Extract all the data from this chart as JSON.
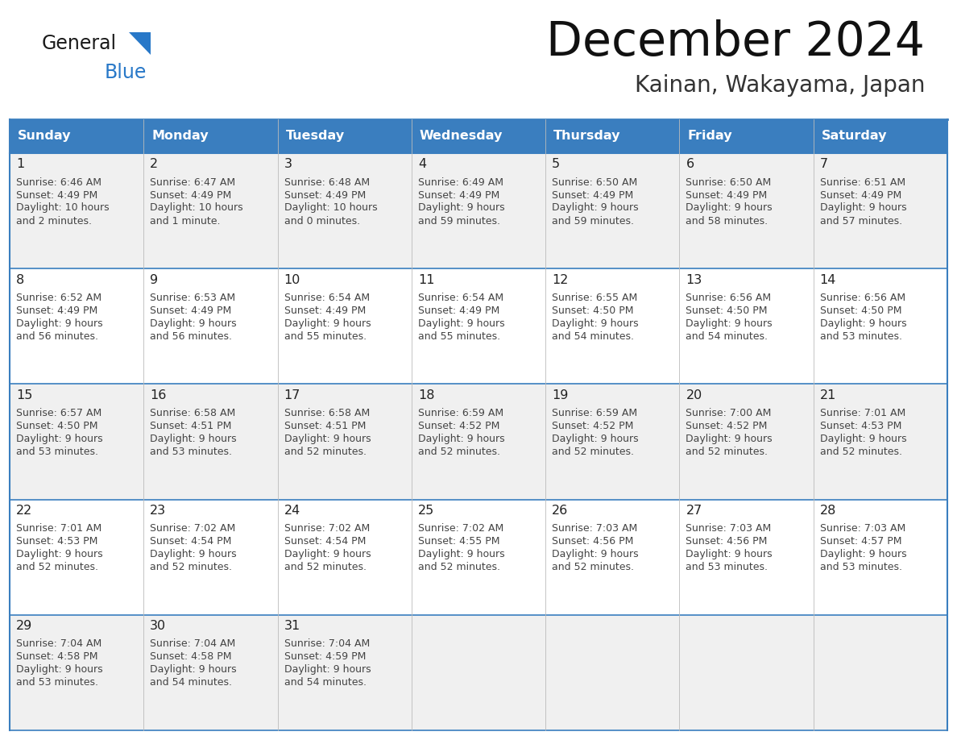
{
  "title": "December 2024",
  "subtitle": "Kainan, Wakayama, Japan",
  "header_color": "#3a7ebf",
  "header_text_color": "#FFFFFF",
  "day_names": [
    "Sunday",
    "Monday",
    "Tuesday",
    "Wednesday",
    "Thursday",
    "Friday",
    "Saturday"
  ],
  "row_colors": [
    "#f0f0f0",
    "#ffffff"
  ],
  "border_color": "#3a7ebf",
  "row_border_color": "#3a7ebf",
  "text_color": "#222222",
  "small_text_color": "#444444",
  "days": [
    {
      "day": 1,
      "col": 0,
      "row": 0,
      "sunrise": "6:46 AM",
      "sunset": "4:49 PM",
      "daylight_h": "10 hours",
      "daylight_m": "and 2 minutes."
    },
    {
      "day": 2,
      "col": 1,
      "row": 0,
      "sunrise": "6:47 AM",
      "sunset": "4:49 PM",
      "daylight_h": "10 hours",
      "daylight_m": "and 1 minute."
    },
    {
      "day": 3,
      "col": 2,
      "row": 0,
      "sunrise": "6:48 AM",
      "sunset": "4:49 PM",
      "daylight_h": "10 hours",
      "daylight_m": "and 0 minutes."
    },
    {
      "day": 4,
      "col": 3,
      "row": 0,
      "sunrise": "6:49 AM",
      "sunset": "4:49 PM",
      "daylight_h": "9 hours",
      "daylight_m": "and 59 minutes."
    },
    {
      "day": 5,
      "col": 4,
      "row": 0,
      "sunrise": "6:50 AM",
      "sunset": "4:49 PM",
      "daylight_h": "9 hours",
      "daylight_m": "and 59 minutes."
    },
    {
      "day": 6,
      "col": 5,
      "row": 0,
      "sunrise": "6:50 AM",
      "sunset": "4:49 PM",
      "daylight_h": "9 hours",
      "daylight_m": "and 58 minutes."
    },
    {
      "day": 7,
      "col": 6,
      "row": 0,
      "sunrise": "6:51 AM",
      "sunset": "4:49 PM",
      "daylight_h": "9 hours",
      "daylight_m": "and 57 minutes."
    },
    {
      "day": 8,
      "col": 0,
      "row": 1,
      "sunrise": "6:52 AM",
      "sunset": "4:49 PM",
      "daylight_h": "9 hours",
      "daylight_m": "and 56 minutes."
    },
    {
      "day": 9,
      "col": 1,
      "row": 1,
      "sunrise": "6:53 AM",
      "sunset": "4:49 PM",
      "daylight_h": "9 hours",
      "daylight_m": "and 56 minutes."
    },
    {
      "day": 10,
      "col": 2,
      "row": 1,
      "sunrise": "6:54 AM",
      "sunset": "4:49 PM",
      "daylight_h": "9 hours",
      "daylight_m": "and 55 minutes."
    },
    {
      "day": 11,
      "col": 3,
      "row": 1,
      "sunrise": "6:54 AM",
      "sunset": "4:49 PM",
      "daylight_h": "9 hours",
      "daylight_m": "and 55 minutes."
    },
    {
      "day": 12,
      "col": 4,
      "row": 1,
      "sunrise": "6:55 AM",
      "sunset": "4:50 PM",
      "daylight_h": "9 hours",
      "daylight_m": "and 54 minutes."
    },
    {
      "day": 13,
      "col": 5,
      "row": 1,
      "sunrise": "6:56 AM",
      "sunset": "4:50 PM",
      "daylight_h": "9 hours",
      "daylight_m": "and 54 minutes."
    },
    {
      "day": 14,
      "col": 6,
      "row": 1,
      "sunrise": "6:56 AM",
      "sunset": "4:50 PM",
      "daylight_h": "9 hours",
      "daylight_m": "and 53 minutes."
    },
    {
      "day": 15,
      "col": 0,
      "row": 2,
      "sunrise": "6:57 AM",
      "sunset": "4:50 PM",
      "daylight_h": "9 hours",
      "daylight_m": "and 53 minutes."
    },
    {
      "day": 16,
      "col": 1,
      "row": 2,
      "sunrise": "6:58 AM",
      "sunset": "4:51 PM",
      "daylight_h": "9 hours",
      "daylight_m": "and 53 minutes."
    },
    {
      "day": 17,
      "col": 2,
      "row": 2,
      "sunrise": "6:58 AM",
      "sunset": "4:51 PM",
      "daylight_h": "9 hours",
      "daylight_m": "and 52 minutes."
    },
    {
      "day": 18,
      "col": 3,
      "row": 2,
      "sunrise": "6:59 AM",
      "sunset": "4:52 PM",
      "daylight_h": "9 hours",
      "daylight_m": "and 52 minutes."
    },
    {
      "day": 19,
      "col": 4,
      "row": 2,
      "sunrise": "6:59 AM",
      "sunset": "4:52 PM",
      "daylight_h": "9 hours",
      "daylight_m": "and 52 minutes."
    },
    {
      "day": 20,
      "col": 5,
      "row": 2,
      "sunrise": "7:00 AM",
      "sunset": "4:52 PM",
      "daylight_h": "9 hours",
      "daylight_m": "and 52 minutes."
    },
    {
      "day": 21,
      "col": 6,
      "row": 2,
      "sunrise": "7:01 AM",
      "sunset": "4:53 PM",
      "daylight_h": "9 hours",
      "daylight_m": "and 52 minutes."
    },
    {
      "day": 22,
      "col": 0,
      "row": 3,
      "sunrise": "7:01 AM",
      "sunset": "4:53 PM",
      "daylight_h": "9 hours",
      "daylight_m": "and 52 minutes."
    },
    {
      "day": 23,
      "col": 1,
      "row": 3,
      "sunrise": "7:02 AM",
      "sunset": "4:54 PM",
      "daylight_h": "9 hours",
      "daylight_m": "and 52 minutes."
    },
    {
      "day": 24,
      "col": 2,
      "row": 3,
      "sunrise": "7:02 AM",
      "sunset": "4:54 PM",
      "daylight_h": "9 hours",
      "daylight_m": "and 52 minutes."
    },
    {
      "day": 25,
      "col": 3,
      "row": 3,
      "sunrise": "7:02 AM",
      "sunset": "4:55 PM",
      "daylight_h": "9 hours",
      "daylight_m": "and 52 minutes."
    },
    {
      "day": 26,
      "col": 4,
      "row": 3,
      "sunrise": "7:03 AM",
      "sunset": "4:56 PM",
      "daylight_h": "9 hours",
      "daylight_m": "and 52 minutes."
    },
    {
      "day": 27,
      "col": 5,
      "row": 3,
      "sunrise": "7:03 AM",
      "sunset": "4:56 PM",
      "daylight_h": "9 hours",
      "daylight_m": "and 53 minutes."
    },
    {
      "day": 28,
      "col": 6,
      "row": 3,
      "sunrise": "7:03 AM",
      "sunset": "4:57 PM",
      "daylight_h": "9 hours",
      "daylight_m": "and 53 minutes."
    },
    {
      "day": 29,
      "col": 0,
      "row": 4,
      "sunrise": "7:04 AM",
      "sunset": "4:58 PM",
      "daylight_h": "9 hours",
      "daylight_m": "and 53 minutes."
    },
    {
      "day": 30,
      "col": 1,
      "row": 4,
      "sunrise": "7:04 AM",
      "sunset": "4:58 PM",
      "daylight_h": "9 hours",
      "daylight_m": "and 54 minutes."
    },
    {
      "day": 31,
      "col": 2,
      "row": 4,
      "sunrise": "7:04 AM",
      "sunset": "4:59 PM",
      "daylight_h": "9 hours",
      "daylight_m": "and 54 minutes."
    }
  ]
}
